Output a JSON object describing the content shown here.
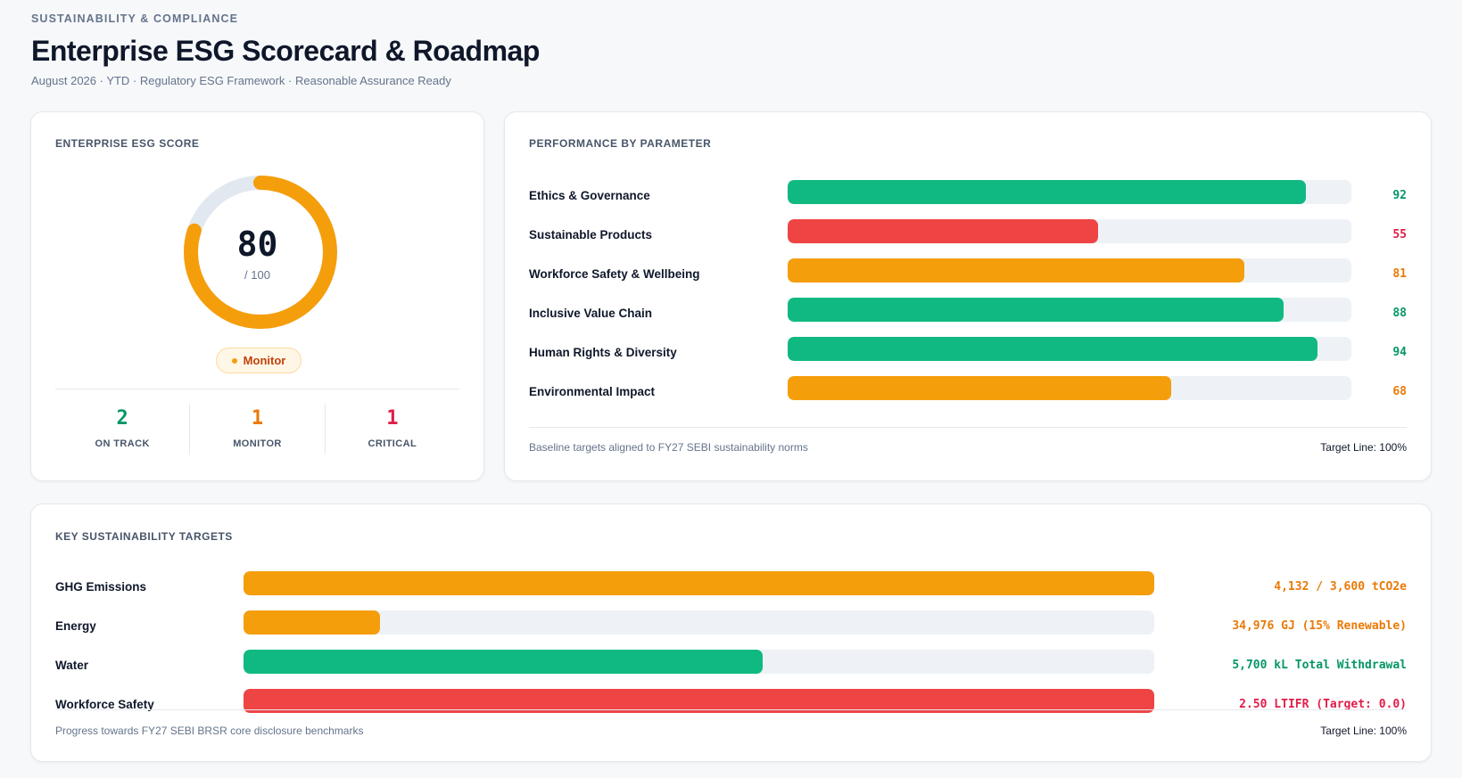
{
  "header": {
    "eyebrow": "SUSTAINABILITY & COMPLIANCE",
    "title": "Enterprise ESG Scorecard & Roadmap",
    "subtitle": "August 2026 · YTD · Regulatory ESG Framework · Reasonable Assurance Ready"
  },
  "colors": {
    "green": "#10b981",
    "amber": "#f59e0b",
    "red": "#ef4444",
    "green_text": "#059669",
    "amber_text": "#ea7a07",
    "red_text": "#e11d48",
    "track": "#eef2f6",
    "ring_track": "#e2e8f0"
  },
  "score_card": {
    "title": "ENTERPRISE ESG SCORE",
    "score": "80",
    "max_label": "/ 100",
    "score_fraction": 0.8,
    "status": "Monitor",
    "stats": [
      {
        "value": "2",
        "label": "ON TRACK",
        "status": "green"
      },
      {
        "value": "1",
        "label": "MONITOR",
        "status": "amber"
      },
      {
        "value": "1",
        "label": "CRITICAL",
        "status": "red"
      }
    ]
  },
  "performance": {
    "title": "PERFORMANCE BY PARAMETER",
    "rows": [
      {
        "label": "Ethics & Governance",
        "value": "92",
        "percent": 92,
        "status": "green"
      },
      {
        "label": "Sustainable Products",
        "value": "55",
        "percent": 55,
        "status": "red"
      },
      {
        "label": "Workforce Safety & Wellbeing",
        "value": "81",
        "percent": 81,
        "status": "amber"
      },
      {
        "label": "Inclusive Value Chain",
        "value": "88",
        "percent": 88,
        "status": "green"
      },
      {
        "label": "Human Rights & Diversity",
        "value": "94",
        "percent": 94,
        "status": "green"
      },
      {
        "label": "Environmental Impact",
        "value": "68",
        "percent": 68,
        "status": "amber"
      }
    ],
    "footnote": "Baseline targets aligned to FY27 SEBI sustainability norms",
    "target_line": "Target Line: 100%"
  },
  "targets": {
    "title": "KEY SUSTAINABILITY TARGETS",
    "rows": [
      {
        "label": "GHG Emissions",
        "value": "4,132 / 3,600 tCO2e",
        "percent": 100,
        "status": "amber"
      },
      {
        "label": "Energy",
        "value": "34,976 GJ (15% Renewable)",
        "percent": 15,
        "status": "amber"
      },
      {
        "label": "Water",
        "value": "5,700 kL Total Withdrawal",
        "percent": 57,
        "status": "green"
      },
      {
        "label": "Workforce Safety",
        "value": "2.50 LTIFR (Target: 0.0)",
        "percent": 100,
        "status": "red"
      }
    ],
    "footnote": "Progress towards FY27 SEBI BRSR core disclosure benchmarks",
    "target_line": "Target Line: 100%"
  }
}
